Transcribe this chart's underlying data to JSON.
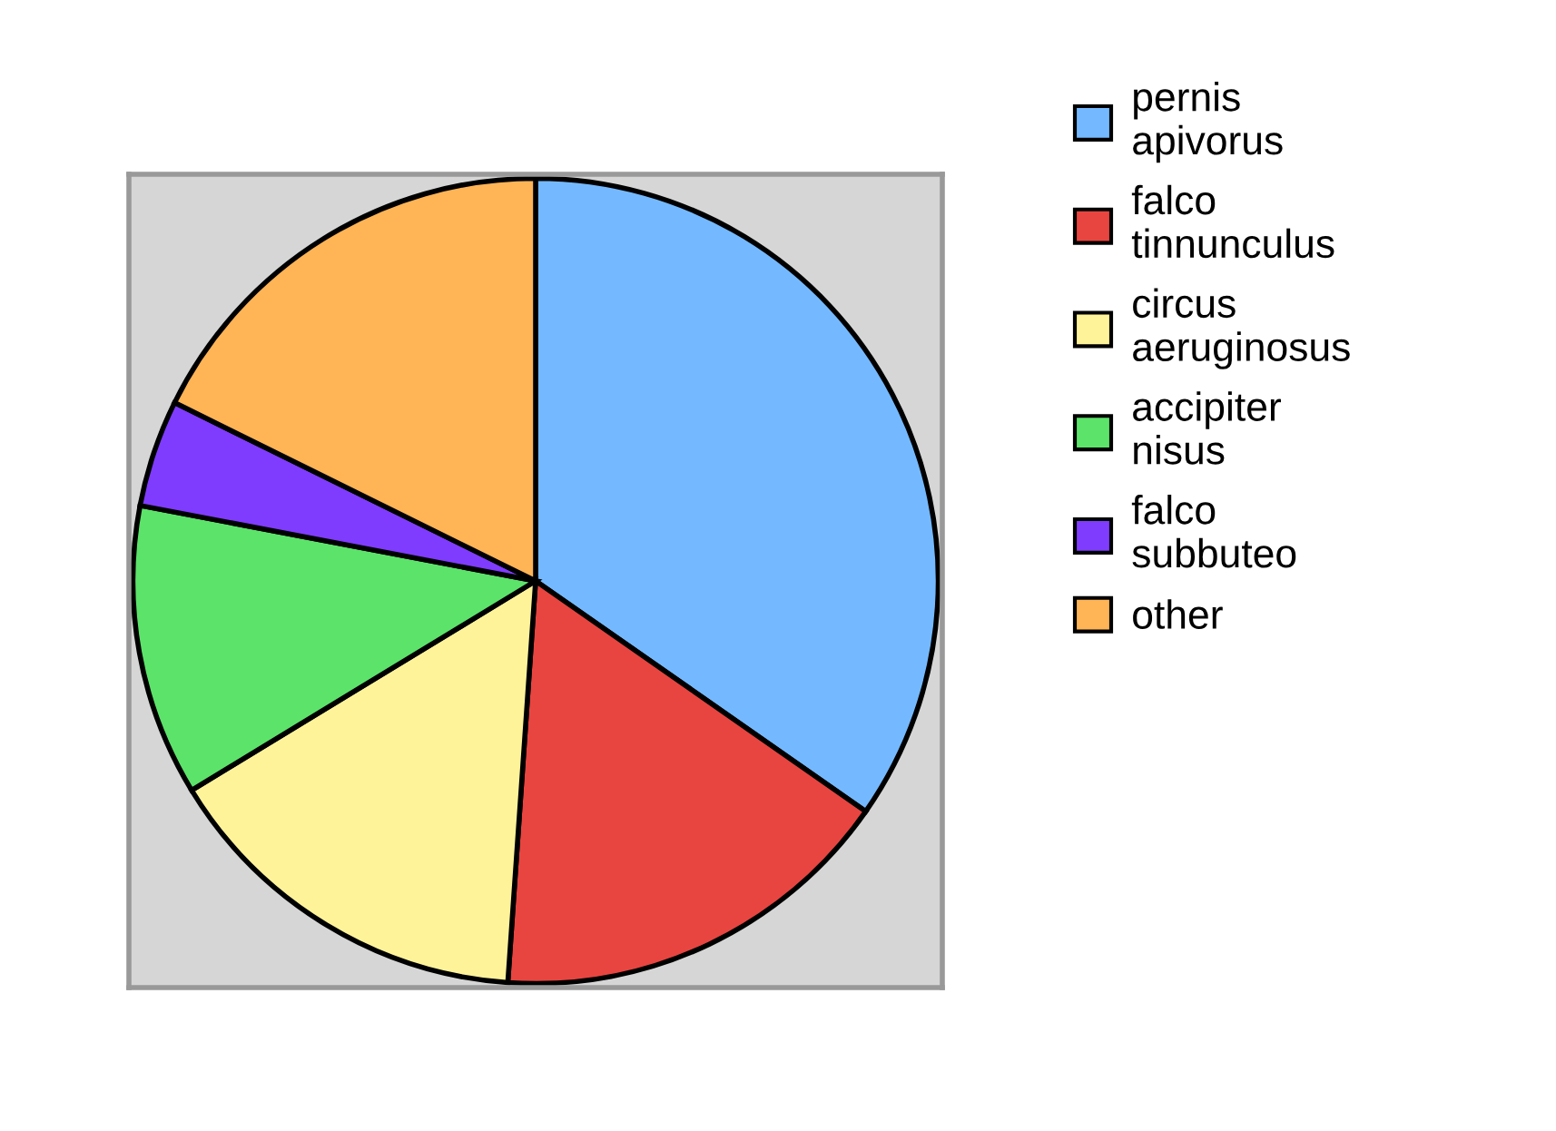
{
  "chart_data": {
    "type": "pie",
    "categories": [
      "pernis\napivorus",
      "falco\ntinnunculus",
      "circus\naeruginosus",
      "accipiter\nnisus",
      "falco\nsubbuteo",
      "other"
    ],
    "values": [
      34.7,
      16.4,
      15.2,
      11.7,
      4.3,
      17.7
    ],
    "colors": [
      "#74b9ff",
      "#e84540",
      "#fff39a",
      "#5ce36a",
      "#7f3cff",
      "#ffb456"
    ],
    "legend": "right"
  }
}
